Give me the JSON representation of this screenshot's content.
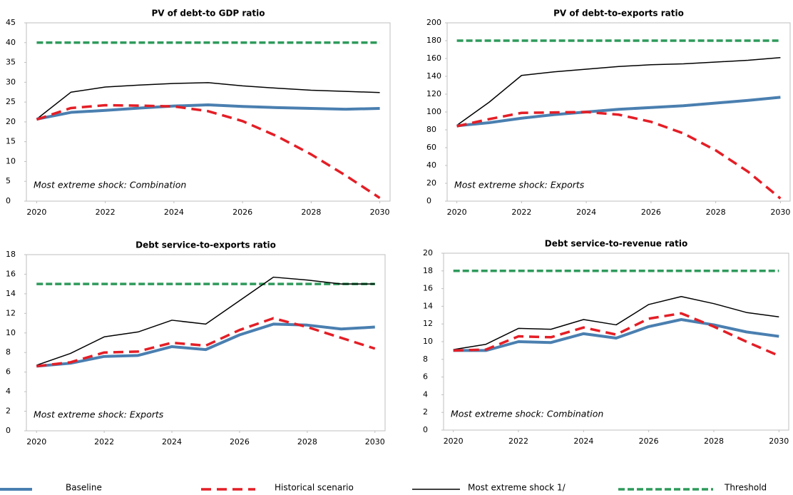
{
  "legend": [
    {
      "name": "Baseline",
      "color": "#4a7fb0"
    },
    {
      "name": "Historical scenario",
      "color": "#e41e26"
    },
    {
      "name": "Most extreme shock 1/",
      "color": "#000000"
    },
    {
      "name": "Threshold",
      "color": "#2e9a5b"
    }
  ],
  "chart_data": [
    {
      "type": "line",
      "title": "PV of debt-to GDP ratio",
      "annotation": "Most extreme shock: Combination",
      "x": [
        2020,
        2021,
        2022,
        2023,
        2024,
        2025,
        2026,
        2027,
        2028,
        2029,
        2030
      ],
      "xlim": [
        2019.7,
        2030.3
      ],
      "xticks": [
        2020,
        2022,
        2024,
        2026,
        2028,
        2030
      ],
      "ylim": [
        0,
        45
      ],
      "yticks": [
        0,
        5,
        10,
        15,
        20,
        25,
        30,
        35,
        40,
        45
      ],
      "series": [
        {
          "values": [
            20.7,
            22.4,
            22.9,
            23.5,
            24.0,
            24.3,
            23.9,
            23.6,
            23.4,
            23.2,
            23.4
          ]
        },
        {
          "values": [
            20.6,
            23.5,
            24.2,
            24.1,
            23.9,
            22.7,
            20.2,
            16.4,
            11.8,
            6.5,
            0.8
          ]
        },
        {
          "values": [
            20.7,
            27.5,
            28.8,
            29.3,
            29.7,
            29.9,
            29.1,
            28.5,
            28.0,
            27.7,
            27.4
          ]
        },
        {
          "values": [
            40,
            40,
            40,
            40,
            40,
            40,
            40,
            40,
            40,
            40,
            40
          ]
        }
      ]
    },
    {
      "type": "line",
      "title": "PV of debt-to-exports ratio",
      "annotation": "Most extreme shock: Exports",
      "x": [
        2020,
        2021,
        2022,
        2023,
        2024,
        2025,
        2026,
        2027,
        2028,
        2029,
        2030
      ],
      "xlim": [
        2019.7,
        2030.3
      ],
      "xticks": [
        2020,
        2022,
        2024,
        2026,
        2028,
        2030
      ],
      "ylim": [
        0,
        200
      ],
      "yticks": [
        0,
        20,
        40,
        60,
        80,
        100,
        120,
        140,
        160,
        180,
        200
      ],
      "series": [
        {
          "values": [
            84.5,
            88,
            93,
            97,
            100,
            103,
            105,
            107,
            110,
            113,
            116.5
          ]
        },
        {
          "values": [
            84,
            92,
            99,
            99.5,
            100,
            97,
            89,
            76,
            57,
            33,
            3
          ]
        },
        {
          "values": [
            85,
            111,
            141,
            145,
            148,
            151,
            153,
            154,
            156,
            158,
            161
          ]
        },
        {
          "values": [
            180,
            180,
            180,
            180,
            180,
            180,
            180,
            180,
            180,
            180,
            180
          ]
        }
      ]
    },
    {
      "type": "line",
      "title": "Debt service-to-exports ratio",
      "annotation": "Most extreme shock: Exports",
      "x": [
        2020,
        2021,
        2022,
        2023,
        2024,
        2025,
        2026,
        2027,
        2028,
        2029,
        2030
      ],
      "xlim": [
        2019.7,
        2030.3
      ],
      "xticks": [
        2020,
        2022,
        2024,
        2026,
        2028,
        2030
      ],
      "ylim": [
        0,
        18
      ],
      "yticks": [
        0,
        2,
        4,
        6,
        8,
        10,
        12,
        14,
        16,
        18
      ],
      "series": [
        {
          "values": [
            6.6,
            6.9,
            7.6,
            7.7,
            8.6,
            8.3,
            9.8,
            10.9,
            10.8,
            10.4,
            10.6
          ]
        },
        {
          "values": [
            6.6,
            7.0,
            8.0,
            8.1,
            9.0,
            8.7,
            10.3,
            11.5,
            10.6,
            9.5,
            8.4
          ]
        },
        {
          "values": [
            6.7,
            7.9,
            9.6,
            10.1,
            11.3,
            10.9,
            13.3,
            15.7,
            15.4,
            15.0,
            15.0
          ]
        },
        {
          "values": [
            15,
            15,
            15,
            15,
            15,
            15,
            15,
            15,
            15,
            15,
            15
          ]
        }
      ]
    },
    {
      "type": "line",
      "title": "Debt service-to-revenue ratio",
      "annotation": "Most extreme shock: Combination",
      "x": [
        2020,
        2021,
        2022,
        2023,
        2024,
        2025,
        2026,
        2027,
        2028,
        2029,
        2030
      ],
      "xlim": [
        2019.7,
        2030.3
      ],
      "xticks": [
        2020,
        2022,
        2024,
        2026,
        2028,
        2030
      ],
      "ylim": [
        0,
        20
      ],
      "yticks": [
        0,
        2,
        4,
        6,
        8,
        10,
        12,
        14,
        16,
        18,
        20
      ],
      "series": [
        {
          "values": [
            9.0,
            9.0,
            10.0,
            9.9,
            10.9,
            10.4,
            11.7,
            12.5,
            11.9,
            11.1,
            10.6
          ]
        },
        {
          "values": [
            9.0,
            9.1,
            10.6,
            10.5,
            11.6,
            10.8,
            12.6,
            13.2,
            11.7,
            10.0,
            8.4
          ]
        },
        {
          "values": [
            9.1,
            9.7,
            11.5,
            11.4,
            12.5,
            11.9,
            14.2,
            15.1,
            14.3,
            13.3,
            12.8
          ]
        },
        {
          "values": [
            18,
            18,
            18,
            18,
            18,
            18,
            18,
            18,
            18,
            18,
            18
          ]
        }
      ]
    }
  ]
}
